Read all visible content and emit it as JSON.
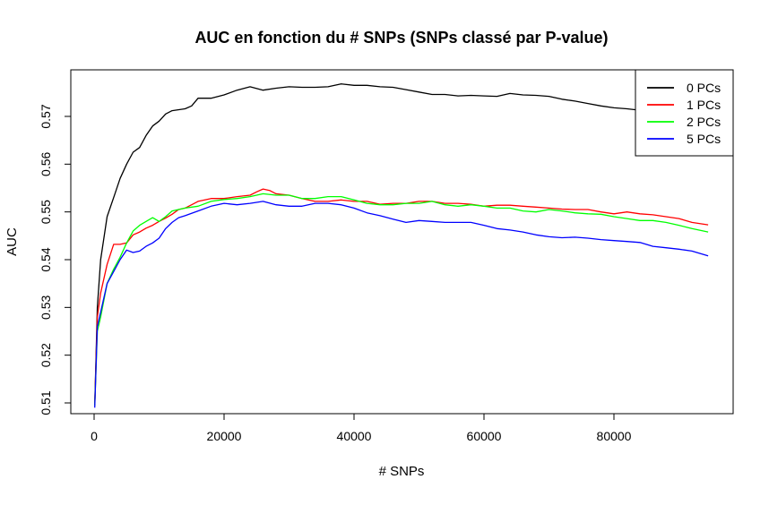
{
  "chart_data": {
    "type": "line",
    "title": "AUC en fonction du # SNPs (SNPs classé par P-value)",
    "xlabel": "# SNPs",
    "ylabel": "AUC",
    "xlim": [
      0,
      95000
    ],
    "ylim": [
      0.51,
      0.578
    ],
    "xticks": [
      0,
      20000,
      40000,
      60000,
      80000
    ],
    "xtick_labels": [
      "0",
      "20000",
      "40000",
      "60000",
      "80000"
    ],
    "yticks": [
      0.51,
      0.52,
      0.53,
      0.54,
      0.55,
      0.56,
      0.57
    ],
    "ytick_labels": [
      "0.51",
      "0.52",
      "0.53",
      "0.54",
      "0.55",
      "0.56",
      "0.57"
    ],
    "grid": false,
    "legend_position": "top-right",
    "series": [
      {
        "name": "0 PCs",
        "color": "#000000",
        "points": [
          [
            100,
            0.5095
          ],
          [
            500,
            0.53
          ],
          [
            1000,
            0.54
          ],
          [
            2000,
            0.549
          ],
          [
            3000,
            0.553
          ],
          [
            4000,
            0.557
          ],
          [
            5000,
            0.56
          ],
          [
            6000,
            0.5625
          ],
          [
            7000,
            0.5635
          ],
          [
            8000,
            0.566
          ],
          [
            9000,
            0.568
          ],
          [
            10000,
            0.569
          ],
          [
            11000,
            0.5705
          ],
          [
            12000,
            0.5712
          ],
          [
            14000,
            0.5716
          ],
          [
            15000,
            0.5722
          ],
          [
            16000,
            0.5738
          ],
          [
            18000,
            0.5738
          ],
          [
            20000,
            0.5745
          ],
          [
            22000,
            0.5755
          ],
          [
            24000,
            0.5762
          ],
          [
            26000,
            0.5755
          ],
          [
            28000,
            0.5759
          ],
          [
            30000,
            0.5762
          ],
          [
            32000,
            0.5761
          ],
          [
            34000,
            0.5761
          ],
          [
            36000,
            0.5762
          ],
          [
            38000,
            0.5768
          ],
          [
            40000,
            0.5765
          ],
          [
            42000,
            0.5765
          ],
          [
            44000,
            0.5762
          ],
          [
            46000,
            0.5761
          ],
          [
            48000,
            0.5756
          ],
          [
            50000,
            0.5751
          ],
          [
            52000,
            0.5746
          ],
          [
            54000,
            0.5746
          ],
          [
            56000,
            0.5743
          ],
          [
            58000,
            0.5744
          ],
          [
            60000,
            0.5743
          ],
          [
            62000,
            0.5742
          ],
          [
            64000,
            0.5748
          ],
          [
            66000,
            0.5745
          ],
          [
            68000,
            0.5744
          ],
          [
            70000,
            0.5742
          ],
          [
            72000,
            0.5736
          ],
          [
            74000,
            0.5732
          ],
          [
            76000,
            0.5727
          ],
          [
            78000,
            0.5722
          ],
          [
            80000,
            0.5718
          ],
          [
            82000,
            0.5716
          ],
          [
            84000,
            0.5713
          ],
          [
            86000,
            0.5711
          ],
          [
            88000,
            0.5713
          ],
          [
            90000,
            0.5712
          ],
          [
            92000,
            0.571
          ],
          [
            94500,
            0.5712
          ]
        ]
      },
      {
        "name": "1 PCs",
        "color": "#ff0000",
        "points": [
          [
            100,
            0.5095
          ],
          [
            500,
            0.528
          ],
          [
            1000,
            0.533
          ],
          [
            2000,
            0.539
          ],
          [
            3000,
            0.5432
          ],
          [
            4000,
            0.5432
          ],
          [
            5000,
            0.5435
          ],
          [
            6000,
            0.5452
          ],
          [
            7000,
            0.5458
          ],
          [
            8000,
            0.5466
          ],
          [
            9000,
            0.5472
          ],
          [
            10000,
            0.548
          ],
          [
            11000,
            0.5487
          ],
          [
            12000,
            0.5495
          ],
          [
            13000,
            0.5505
          ],
          [
            14000,
            0.5508
          ],
          [
            15000,
            0.5515
          ],
          [
            16000,
            0.5522
          ],
          [
            18000,
            0.5528
          ],
          [
            20000,
            0.5528
          ],
          [
            22000,
            0.5532
          ],
          [
            24000,
            0.5535
          ],
          [
            25000,
            0.5542
          ],
          [
            26000,
            0.5548
          ],
          [
            27000,
            0.5545
          ],
          [
            28000,
            0.5538
          ],
          [
            30000,
            0.5535
          ],
          [
            32000,
            0.5528
          ],
          [
            34000,
            0.5522
          ],
          [
            36000,
            0.5522
          ],
          [
            38000,
            0.5525
          ],
          [
            40000,
            0.5522
          ],
          [
            42000,
            0.5522
          ],
          [
            44000,
            0.5516
          ],
          [
            46000,
            0.5518
          ],
          [
            48000,
            0.5518
          ],
          [
            50000,
            0.5522
          ],
          [
            52000,
            0.5522
          ],
          [
            54000,
            0.5518
          ],
          [
            56000,
            0.5518
          ],
          [
            58000,
            0.5516
          ],
          [
            60000,
            0.5512
          ],
          [
            62000,
            0.5514
          ],
          [
            64000,
            0.5514
          ],
          [
            66000,
            0.5512
          ],
          [
            68000,
            0.551
          ],
          [
            70000,
            0.5508
          ],
          [
            72000,
            0.5506
          ],
          [
            74000,
            0.5505
          ],
          [
            76000,
            0.5505
          ],
          [
            78000,
            0.55
          ],
          [
            80000,
            0.5496
          ],
          [
            82000,
            0.55
          ],
          [
            84000,
            0.5496
          ],
          [
            86000,
            0.5494
          ],
          [
            88000,
            0.549
          ],
          [
            90000,
            0.5486
          ],
          [
            92000,
            0.5478
          ],
          [
            94500,
            0.5473
          ]
        ]
      },
      {
        "name": "2 PCs",
        "color": "#00ff00",
        "points": [
          [
            100,
            0.5095
          ],
          [
            500,
            0.525
          ],
          [
            1000,
            0.528
          ],
          [
            2000,
            0.535
          ],
          [
            3000,
            0.538
          ],
          [
            4000,
            0.5405
          ],
          [
            5000,
            0.5435
          ],
          [
            6000,
            0.546
          ],
          [
            7000,
            0.5472
          ],
          [
            8000,
            0.548
          ],
          [
            9000,
            0.5488
          ],
          [
            10000,
            0.548
          ],
          [
            11000,
            0.549
          ],
          [
            12000,
            0.5502
          ],
          [
            14000,
            0.5508
          ],
          [
            16000,
            0.5512
          ],
          [
            18000,
            0.5522
          ],
          [
            20000,
            0.5526
          ],
          [
            22000,
            0.5528
          ],
          [
            24000,
            0.5532
          ],
          [
            26000,
            0.5538
          ],
          [
            28000,
            0.5535
          ],
          [
            30000,
            0.5535
          ],
          [
            32000,
            0.5528
          ],
          [
            34000,
            0.5528
          ],
          [
            36000,
            0.5532
          ],
          [
            38000,
            0.5532
          ],
          [
            40000,
            0.5525
          ],
          [
            42000,
            0.5518
          ],
          [
            44000,
            0.5515
          ],
          [
            46000,
            0.5515
          ],
          [
            48000,
            0.5518
          ],
          [
            50000,
            0.5518
          ],
          [
            52000,
            0.5522
          ],
          [
            54000,
            0.5515
          ],
          [
            56000,
            0.5512
          ],
          [
            58000,
            0.5515
          ],
          [
            60000,
            0.5512
          ],
          [
            62000,
            0.5508
          ],
          [
            64000,
            0.5508
          ],
          [
            66000,
            0.5502
          ],
          [
            68000,
            0.55
          ],
          [
            70000,
            0.5505
          ],
          [
            72000,
            0.5502
          ],
          [
            74000,
            0.5498
          ],
          [
            76000,
            0.5496
          ],
          [
            78000,
            0.5495
          ],
          [
            80000,
            0.549
          ],
          [
            82000,
            0.5486
          ],
          [
            84000,
            0.5482
          ],
          [
            86000,
            0.5482
          ],
          [
            88000,
            0.5478
          ],
          [
            90000,
            0.5472
          ],
          [
            92000,
            0.5465
          ],
          [
            94500,
            0.5458
          ]
        ]
      },
      {
        "name": "5 PCs",
        "color": "#0000ff",
        "points": [
          [
            100,
            0.509
          ],
          [
            500,
            0.526
          ],
          [
            1000,
            0.529
          ],
          [
            2000,
            0.535
          ],
          [
            3000,
            0.5375
          ],
          [
            4000,
            0.54
          ],
          [
            5000,
            0.542
          ],
          [
            6000,
            0.5415
          ],
          [
            7000,
            0.5418
          ],
          [
            8000,
            0.5428
          ],
          [
            9000,
            0.5435
          ],
          [
            10000,
            0.5445
          ],
          [
            11000,
            0.5465
          ],
          [
            12000,
            0.5478
          ],
          [
            13000,
            0.5488
          ],
          [
            14000,
            0.5492
          ],
          [
            16000,
            0.5502
          ],
          [
            18000,
            0.5512
          ],
          [
            20000,
            0.5518
          ],
          [
            22000,
            0.5515
          ],
          [
            24000,
            0.5518
          ],
          [
            26000,
            0.5522
          ],
          [
            28000,
            0.5515
          ],
          [
            30000,
            0.5512
          ],
          [
            32000,
            0.5512
          ],
          [
            34000,
            0.5518
          ],
          [
            36000,
            0.5518
          ],
          [
            38000,
            0.5515
          ],
          [
            40000,
            0.5508
          ],
          [
            42000,
            0.5498
          ],
          [
            44000,
            0.5492
          ],
          [
            46000,
            0.5485
          ],
          [
            48000,
            0.5478
          ],
          [
            50000,
            0.5482
          ],
          [
            52000,
            0.548
          ],
          [
            54000,
            0.5478
          ],
          [
            56000,
            0.5478
          ],
          [
            58000,
            0.5478
          ],
          [
            60000,
            0.5472
          ],
          [
            62000,
            0.5465
          ],
          [
            64000,
            0.5462
          ],
          [
            66000,
            0.5458
          ],
          [
            68000,
            0.5452
          ],
          [
            70000,
            0.5448
          ],
          [
            72000,
            0.5446
          ],
          [
            74000,
            0.5447
          ],
          [
            76000,
            0.5445
          ],
          [
            78000,
            0.5442
          ],
          [
            80000,
            0.544
          ],
          [
            82000,
            0.5438
          ],
          [
            84000,
            0.5436
          ],
          [
            86000,
            0.5428
          ],
          [
            88000,
            0.5425
          ],
          [
            90000,
            0.5422
          ],
          [
            92000,
            0.5418
          ],
          [
            94500,
            0.5408
          ]
        ]
      }
    ]
  }
}
